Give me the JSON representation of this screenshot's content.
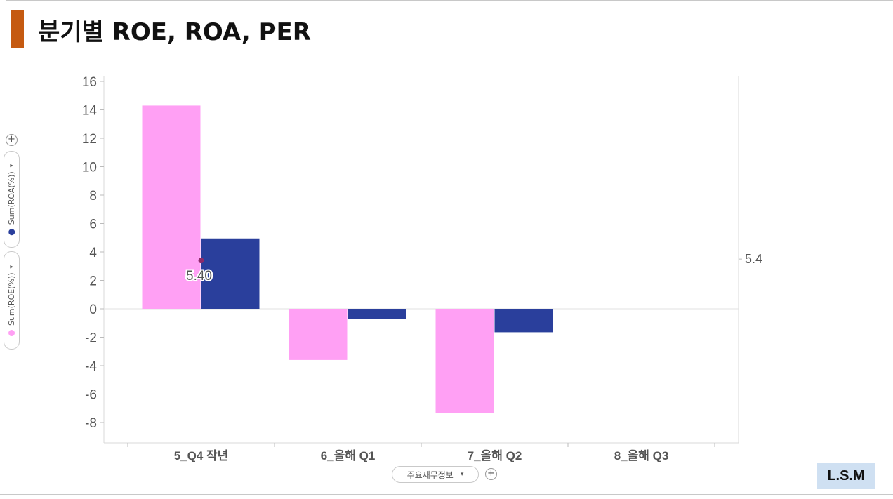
{
  "slide": {
    "title": "분기별 ROE, ROA, PER",
    "badge": "L.S.M"
  },
  "controls": {
    "roa_axis_label": "Sum(ROA(%))",
    "roe_axis_label": "Sum(ROE(%))",
    "x_axis_selector": "주요재무정보",
    "plus_symbol": "+",
    "dropdown_arrow": "▾"
  },
  "colors": {
    "roe": "#ffa0f4",
    "roa": "#2a3f9c",
    "marker": "#8e2a6b",
    "title_accent": "#c55a11"
  },
  "chart_data": {
    "type": "bar",
    "categories": [
      "5_Q4 작년",
      "6_올해 Q1",
      "7_올해 Q2",
      "8_올해 Q3"
    ],
    "series": [
      {
        "name": "Sum(ROE(%))",
        "values": [
          14.3,
          -3.6,
          -7.35,
          null
        ]
      },
      {
        "name": "Sum(ROA(%))",
        "values": [
          4.95,
          -0.7,
          -1.65,
          null
        ]
      }
    ],
    "ylim": [
      -9,
      16.5
    ],
    "yticks": [
      16,
      14,
      12,
      10,
      8,
      6,
      4,
      2,
      0,
      -2,
      -4,
      -6,
      -8
    ],
    "marker": {
      "category": "5_Q4 작년",
      "value": 3.4,
      "label": "5.40"
    },
    "right_axis_label": "5.4",
    "right_axis_value": 3.5
  }
}
